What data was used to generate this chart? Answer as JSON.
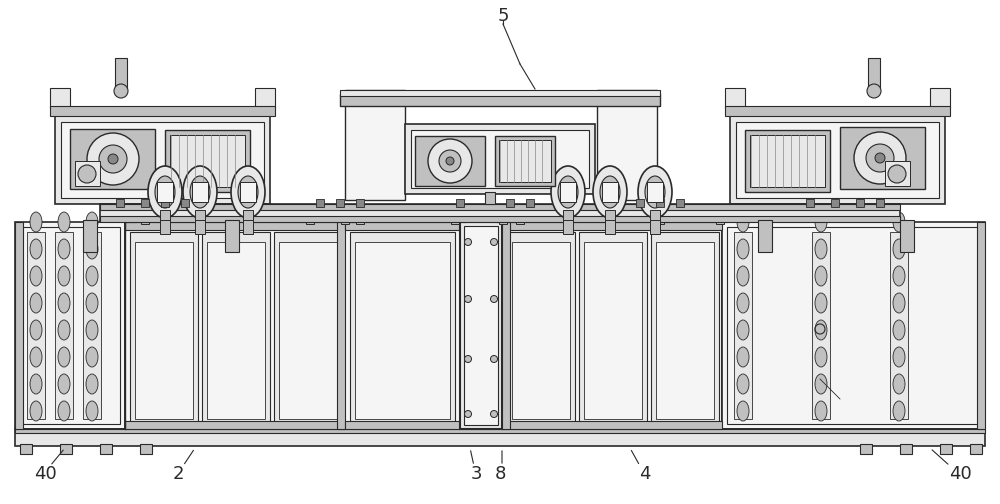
{
  "bg_color": "#ffffff",
  "dc": "#2a2a2a",
  "mc": "#555555",
  "fl": "#e8e8e8",
  "fm": "#c0c0c0",
  "fd": "#888888",
  "fw": "#f5f5f5",
  "fdk": "#444444"
}
